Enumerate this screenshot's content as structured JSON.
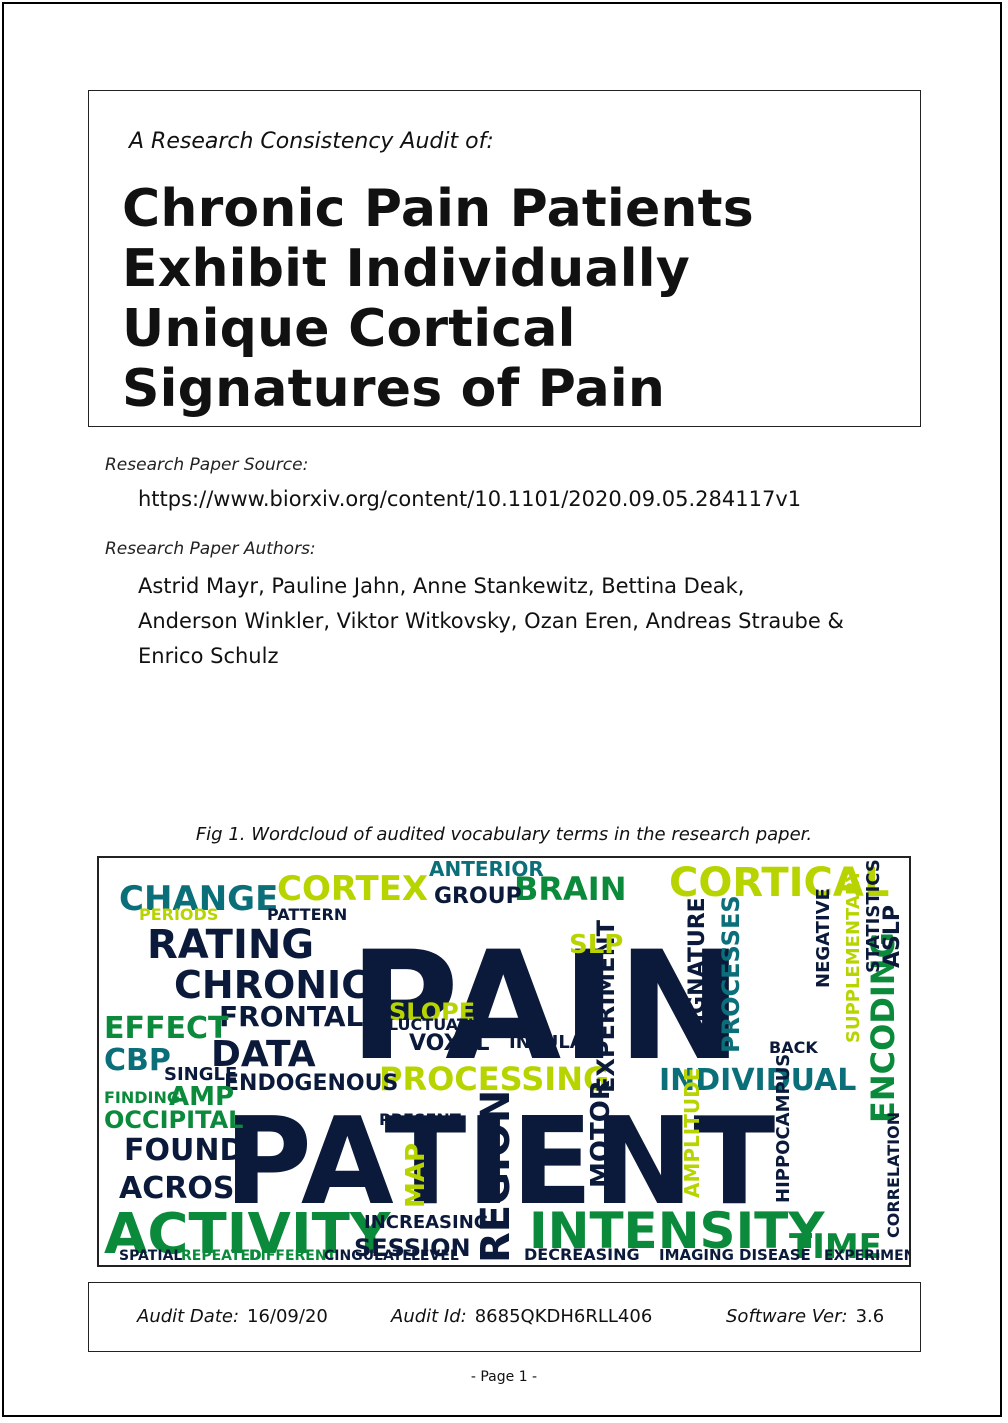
{
  "header": {
    "pre_title": "A Research Consistency Audit of:",
    "title": "Chronic Pain Patients Exhibit Individually Unique Cortical Signatures of Pain"
  },
  "source": {
    "label": "Research Paper Source:",
    "url": "https://www.biorxiv.org/content/10.1101/2020.09.05.284117v1"
  },
  "authors": {
    "label": "Research Paper Authors:",
    "line1": "Astrid Mayr, Pauline Jahn, Anne Stankewitz, Bettina Deak,",
    "line2": "Anderson Winkler, Viktor Witkovsky, Ozan Eren, Andreas Straube &",
    "line3": "Enrico Schulz"
  },
  "figure": {
    "caption": "Fig 1. Wordcloud of audited vocabulary terms in the research paper.",
    "colors": {
      "navy": "#0b1a3a",
      "green": "#0a8a3a",
      "lime": "#b8d400",
      "teal": "#0b6f7a",
      "gold": "#d6c800"
    },
    "words": [
      "PAIN",
      "PATIENT",
      "ACTIVITY",
      "INTENSITY",
      "CORTICAL",
      "CHANGE",
      "CORTEX",
      "BRAIN",
      "RATING",
      "CHRONIC",
      "FRONTAL",
      "DATA",
      "EFFECT",
      "CBP",
      "PROCESSING",
      "INDIVIDUAL",
      "ENDOGENOUS",
      "REGION",
      "OCCIPITAL",
      "FOUND",
      "ACROSS",
      "AMP",
      "TIME",
      "ENCODING",
      "SESSION",
      "INCREASING",
      "SLOPE",
      "GROUP",
      "PATTERN",
      "VOXEL",
      "INSULA",
      "EXPERIMENT",
      "SIGNATURE",
      "PROCESSES",
      "MOTOR",
      "AMPLITUDE",
      "HIPPOCAMPUS",
      "CORRELATION",
      "ANTERIOR",
      "ASLP",
      "SUPPLEMENTARY",
      "NEGATIVE",
      "STATISTICS",
      "MAP",
      "SLP",
      "PERIODS",
      "FINDING",
      "PRESENT",
      "DECREASING",
      "IMAGING",
      "DISEASE",
      "EXPERIMENTAL",
      "SPATIAL",
      "REPEATED",
      "DIFFERENT",
      "CINGULATE",
      "LEVEL",
      "SINGLE",
      "FLUCTUATION",
      "BACK"
    ]
  },
  "audit": {
    "date_label": "Audit Date:",
    "date": "16/09/20",
    "id_label": "Audit Id:",
    "id": "8685QKDH6RLL406",
    "software_label": "Software Ver:",
    "software": "3.6"
  },
  "footer": {
    "page": "-  Page 1  -"
  }
}
